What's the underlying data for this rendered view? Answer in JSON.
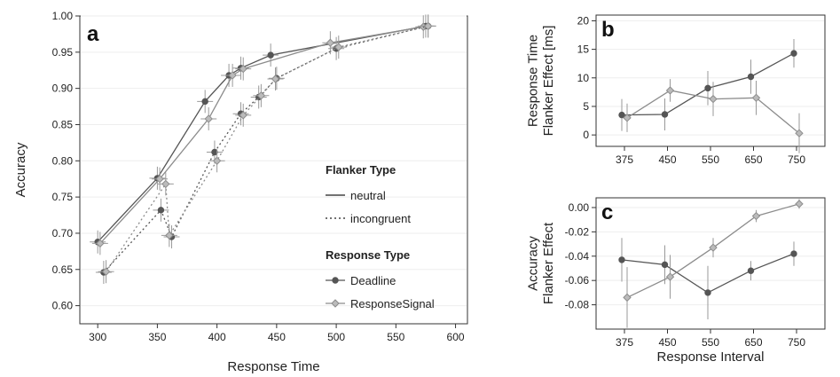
{
  "colors": {
    "deadline": "#555555",
    "response_signal": "#8c8c8c",
    "axis": "#333333",
    "grid": "#eeeeee"
  },
  "chart_data": [
    {
      "panel": "a",
      "type": "line",
      "title": "",
      "xlabel": "Response Time",
      "ylabel": "Accuracy",
      "xlim": [
        285,
        610
      ],
      "ylim": [
        0.575,
        1.0
      ],
      "xticks": [
        300,
        350,
        400,
        450,
        500,
        550,
        600
      ],
      "yticks": [
        0.6,
        0.65,
        0.7,
        0.75,
        0.8,
        0.85,
        0.9,
        0.95,
        1.0
      ],
      "ytick_labels": [
        "0.60",
        "0.65",
        "0.70",
        "0.75",
        "0.80",
        "0.85",
        "0.90",
        "0.95",
        "1.00"
      ],
      "legend": {
        "position": "bottom-right",
        "flanker_title": "Flanker Type",
        "flanker_items": [
          "neutral",
          "incongruent"
        ],
        "response_title": "Response Type",
        "response_items": [
          "Deadline",
          "ResponseSignal"
        ]
      },
      "series": [
        {
          "flanker": "neutral",
          "response": "Deadline",
          "points": [
            [
              300,
              0.688
            ],
            [
              350,
              0.776
            ],
            [
              390,
              0.882
            ],
            [
              410,
              0.918
            ],
            [
              420,
              0.928
            ],
            [
              445,
              0.946
            ],
            [
              575,
              0.986
            ]
          ]
        },
        {
          "flanker": "neutral",
          "response": "ResponseSignal",
          "points": [
            [
              302,
              0.686
            ],
            [
              352,
              0.775
            ],
            [
              393,
              0.858
            ],
            [
              413,
              0.918
            ],
            [
              422,
              0.927
            ],
            [
              495,
              0.963
            ],
            [
              573,
              0.985
            ]
          ]
        },
        {
          "flanker": "incongruent",
          "response": "Deadline",
          "points": [
            [
              305,
              0.646
            ],
            [
              353,
              0.732
            ],
            [
              362,
              0.695
            ],
            [
              398,
              0.812
            ],
            [
              420,
              0.865
            ],
            [
              435,
              0.888
            ],
            [
              450,
              0.914
            ],
            [
              500,
              0.955
            ],
            [
              577,
              0.986
            ]
          ]
        },
        {
          "flanker": "incongruent",
          "response": "ResponseSignal",
          "points": [
            [
              307,
              0.647
            ],
            [
              357,
              0.768
            ],
            [
              360,
              0.697
            ],
            [
              400,
              0.8
            ],
            [
              422,
              0.863
            ],
            [
              437,
              0.89
            ],
            [
              449,
              0.913
            ],
            [
              502,
              0.957
            ],
            [
              577,
              0.986
            ]
          ]
        }
      ]
    },
    {
      "panel": "b",
      "type": "line",
      "title": "",
      "xlabel": "",
      "ylabel": "Response Time Flanker Effect [ms]",
      "ylabel_lines": [
        "Response Time",
        "Flanker Effect [ms]"
      ],
      "categories": [
        "375",
        "450",
        "550",
        "650",
        "750"
      ],
      "ylim": [
        -2,
        21
      ],
      "yticks": [
        0,
        5,
        10,
        15,
        20
      ],
      "ytick_labels": [
        "0",
        "5",
        "10",
        "15",
        "20"
      ],
      "series": [
        {
          "response": "Deadline",
          "values": [
            3.5,
            3.6,
            8.2,
            10.2,
            14.3
          ],
          "err": [
            2.8,
            2.8,
            3.0,
            3.0,
            2.5
          ]
        },
        {
          "response": "ResponseSignal",
          "values": [
            3.0,
            7.8,
            6.3,
            6.5,
            0.3
          ],
          "err": [
            2.5,
            2.0,
            3.0,
            3.0,
            3.5
          ]
        }
      ]
    },
    {
      "panel": "c",
      "type": "line",
      "title": "",
      "xlabel": "Response Interval",
      "ylabel": "Accuracy Flanker Effect",
      "ylabel_lines": [
        "Accuracy",
        "Flanker Effect"
      ],
      "categories": [
        "375",
        "450",
        "550",
        "650",
        "750"
      ],
      "ylim": [
        -0.1,
        0.008
      ],
      "yticks": [
        -0.08,
        -0.06,
        -0.04,
        -0.02,
        0.0
      ],
      "ytick_labels": [
        "-0.08",
        "-0.06",
        "-0.04",
        "-0.02",
        "0.00"
      ],
      "series": [
        {
          "response": "Deadline",
          "values": [
            -0.043,
            -0.047,
            -0.07,
            -0.052,
            -0.038
          ],
          "err": [
            0.018,
            0.016,
            0.022,
            0.008,
            0.01
          ]
        },
        {
          "response": "ResponseSignal",
          "values": [
            -0.074,
            -0.057,
            -0.033,
            -0.007,
            0.003
          ],
          "err": [
            0.025,
            0.018,
            0.008,
            0.005,
            0.004
          ]
        }
      ]
    }
  ]
}
